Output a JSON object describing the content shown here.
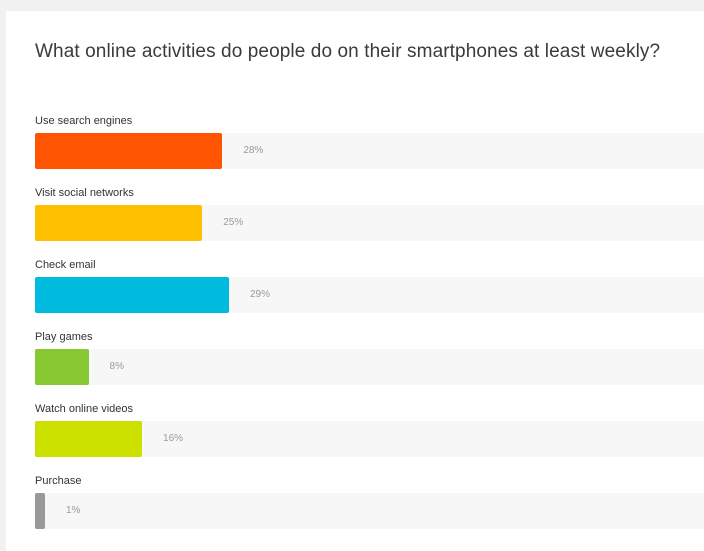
{
  "survey": {
    "question": "What online activities do people do on their smartphones at least weekly?"
  },
  "chart_data": {
    "type": "bar",
    "orientation": "horizontal",
    "categories": [
      "Use search engines",
      "Visit social networks",
      "Check email",
      "Play games",
      "Watch online videos",
      "Purchase"
    ],
    "values": [
      28,
      25,
      29,
      8,
      16,
      1
    ],
    "value_labels": [
      "28%",
      "25%",
      "29%",
      "8%",
      "16%",
      "1%"
    ],
    "colors": [
      "#ff5500",
      "#ffc000",
      "#00bbdd",
      "#88c833",
      "#cce000",
      "#999999"
    ],
    "unit": "%",
    "xlim": [
      0,
      100
    ],
    "title": "",
    "xlabel": "",
    "ylabel": "",
    "grid": false,
    "legend": "none"
  }
}
